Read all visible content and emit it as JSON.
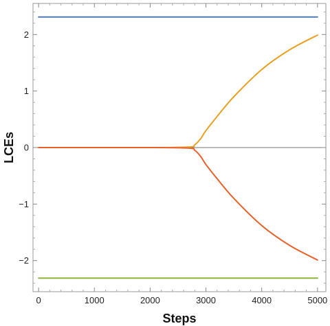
{
  "chart_data": {
    "type": "line",
    "xlabel": "Steps",
    "ylabel": "LCEs",
    "xlim": [
      -100,
      5150
    ],
    "ylim": [
      -2.55,
      2.55
    ],
    "grid": false,
    "legend": "none",
    "x_ticks": [
      0,
      1000,
      2000,
      3000,
      4000,
      5000
    ],
    "x_tick_labels": [
      "0",
      "1000",
      "2000",
      "3000",
      "4000",
      "5000"
    ],
    "y_ticks": [
      2,
      1,
      0,
      -1,
      -2
    ],
    "y_tick_labels": [
      "2",
      "1",
      "0",
      "−1",
      "−2"
    ],
    "reference_line": {
      "y": 0,
      "color": "#444444"
    },
    "series": [
      {
        "color": "#4a7ab8",
        "x": [
          0,
          5000
        ],
        "y": [
          2.31,
          2.31
        ]
      },
      {
        "color": "#e8a020",
        "x": [
          0,
          2000,
          2700,
          2800,
          2900,
          3000,
          3200,
          3500,
          4000,
          4500,
          5000
        ],
        "y": [
          0,
          0,
          0.01,
          0.05,
          0.15,
          0.3,
          0.55,
          0.9,
          1.38,
          1.73,
          1.99
        ]
      },
      {
        "color": "#e8602a",
        "x": [
          0,
          2000,
          2700,
          2800,
          2900,
          3000,
          3200,
          3500,
          4000,
          4500,
          5000
        ],
        "y": [
          0,
          0,
          -0.01,
          -0.05,
          -0.15,
          -0.3,
          -0.55,
          -0.9,
          -1.38,
          -1.73,
          -1.99
        ]
      },
      {
        "color": "#8ab33a",
        "x": [
          0,
          5000
        ],
        "y": [
          -2.31,
          -2.31
        ]
      }
    ]
  }
}
